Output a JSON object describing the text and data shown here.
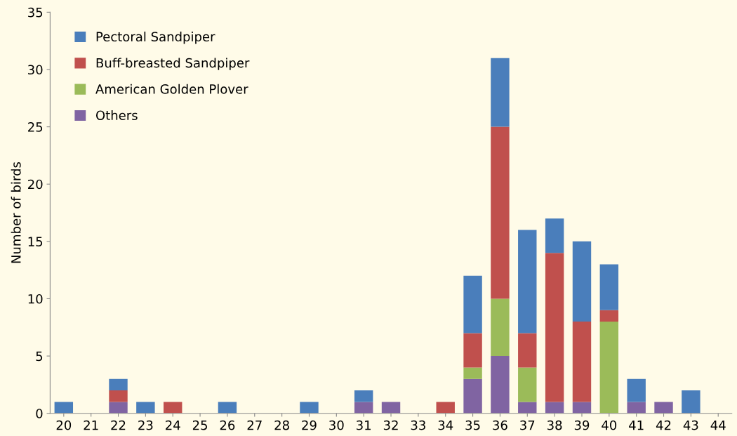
{
  "chart_data": {
    "type": "bar",
    "stacked": true,
    "ylabel": "Number of birds",
    "categories": [
      "20",
      "21",
      "22",
      "23",
      "24",
      "25",
      "26",
      "27",
      "28",
      "29",
      "30",
      "31",
      "32",
      "33",
      "34",
      "35",
      "36",
      "37",
      "38",
      "39",
      "40",
      "41",
      "42",
      "43",
      "44"
    ],
    "series": [
      {
        "name": "Others",
        "color": "#8064a2",
        "values": [
          0,
          0,
          1,
          0,
          0,
          0,
          0,
          0,
          0,
          0,
          0,
          1,
          1,
          0,
          0,
          3,
          5,
          1,
          1,
          1,
          0,
          1,
          1,
          0,
          0
        ]
      },
      {
        "name": "American Golden Plover",
        "color": "#9bbb59",
        "values": [
          0,
          0,
          0,
          0,
          0,
          0,
          0,
          0,
          0,
          0,
          0,
          0,
          0,
          0,
          0,
          1,
          5,
          3,
          0,
          0,
          8,
          0,
          0,
          0,
          0
        ]
      },
      {
        "name": "Buff-breasted Sandpiper",
        "color": "#c0504d",
        "values": [
          0,
          0,
          1,
          0,
          1,
          0,
          0,
          0,
          0,
          0,
          0,
          0,
          0,
          0,
          1,
          3,
          15,
          3,
          13,
          7,
          1,
          0,
          0,
          0,
          0
        ]
      },
      {
        "name": "Pectoral Sandpiper",
        "color": "#4a7ebb",
        "values": [
          1,
          0,
          1,
          1,
          0,
          0,
          1,
          0,
          0,
          1,
          0,
          1,
          0,
          0,
          0,
          5,
          6,
          9,
          3,
          7,
          4,
          2,
          0,
          2,
          0
        ]
      }
    ],
    "ylim": [
      0,
      35
    ],
    "yticks": [
      0,
      5,
      10,
      15,
      20,
      25,
      30,
      35
    ],
    "grid": false,
    "legend": "top left"
  }
}
